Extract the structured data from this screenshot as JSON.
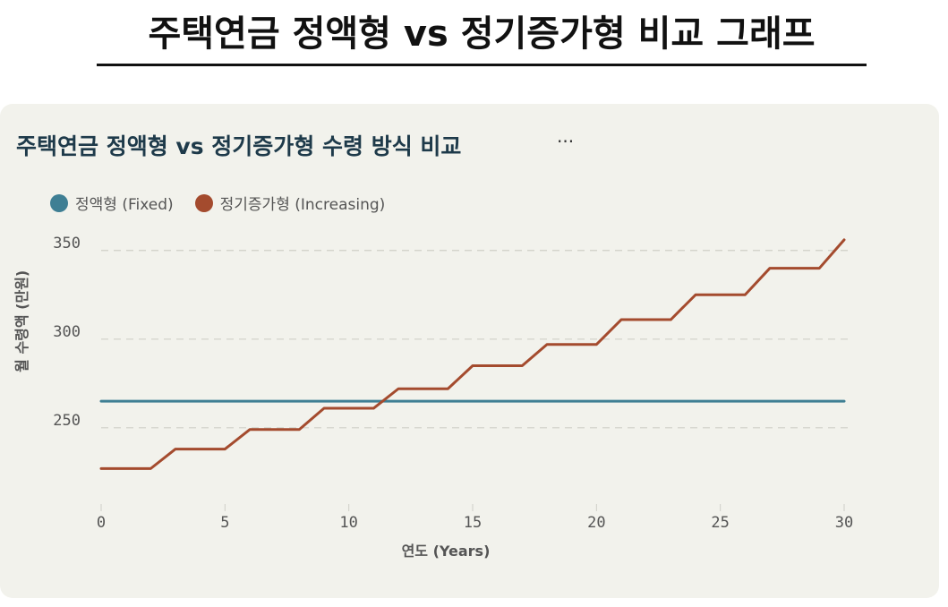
{
  "page": {
    "heading": "주택연금 정액형 vs 정기증가형 비교 그래프"
  },
  "card": {
    "menu_label": "···"
  },
  "colors": {
    "fixed": "#3f7f94",
    "increasing": "#a44b2e",
    "grid": "#cfcfc8"
  },
  "chart_data": {
    "type": "line",
    "title": "주택연금 정액형 vs 정기증가형 수령 방식 비교",
    "xlabel": "연도 (Years)",
    "ylabel": "월 수령액 (만원)",
    "xlim": [
      0,
      30
    ],
    "ylim": [
      208,
      362
    ],
    "x_ticks": [
      0,
      5,
      10,
      15,
      20,
      25,
      30
    ],
    "y_ticks": [
      250,
      300,
      350
    ],
    "grid": "horizontal dashed",
    "legend": "top-left",
    "series": [
      {
        "name": "정액형 (Fixed)",
        "x": [
          0,
          30
        ],
        "y": [
          265,
          265
        ]
      },
      {
        "name": "정기증가형 (Increasing)",
        "x": [
          0,
          2,
          3,
          5,
          6,
          8,
          9,
          11,
          12,
          14,
          15,
          17,
          18,
          20,
          21,
          23,
          24,
          26,
          27,
          29,
          30
        ],
        "y": [
          227,
          227,
          238,
          238,
          249,
          249,
          261,
          261,
          272,
          272,
          285,
          285,
          297,
          297,
          311,
          311,
          325,
          325,
          340,
          340,
          356
        ]
      }
    ]
  }
}
